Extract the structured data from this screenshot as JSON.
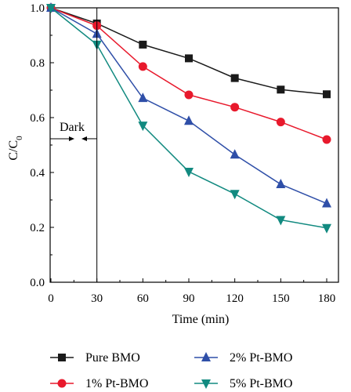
{
  "chart_data": {
    "type": "line",
    "xlabel": "Time (min)",
    "ylabel_main": "C/C",
    "ylabel_sub": "0",
    "xlim": [
      0,
      180
    ],
    "ylim": [
      0.0,
      1.0
    ],
    "xticks": [
      0,
      30,
      60,
      90,
      120,
      150,
      180
    ],
    "yticks": [
      "0.0",
      "0.2",
      "0.4",
      "0.6",
      "0.8",
      "1.0"
    ],
    "x": [
      0,
      30,
      60,
      90,
      120,
      150,
      180
    ],
    "legend_placement": "bottom, two columns",
    "annotation": {
      "text": "Dark",
      "divider_x": 30,
      "arrow_y": 0.523
    },
    "series": [
      {
        "name": "Pure BMO",
        "values": [
          1.0,
          0.943,
          0.866,
          0.816,
          0.744,
          0.702,
          0.685
        ],
        "color": "#1a1a1a",
        "marker": "square"
      },
      {
        "name": "1% Pt-BMO",
        "values": [
          1.0,
          0.935,
          0.786,
          0.683,
          0.638,
          0.584,
          0.52
        ],
        "color": "#e8192c",
        "marker": "circle"
      },
      {
        "name": "2% Pt-BMO",
        "values": [
          1.0,
          0.905,
          0.671,
          0.588,
          0.465,
          0.357,
          0.287
        ],
        "color": "#2f4fa8",
        "marker": "triangle-up"
      },
      {
        "name": "5% Pt-BMO",
        "values": [
          1.0,
          0.866,
          0.571,
          0.403,
          0.322,
          0.227,
          0.198
        ],
        "color": "#128a80",
        "marker": "triangle-down"
      }
    ]
  }
}
